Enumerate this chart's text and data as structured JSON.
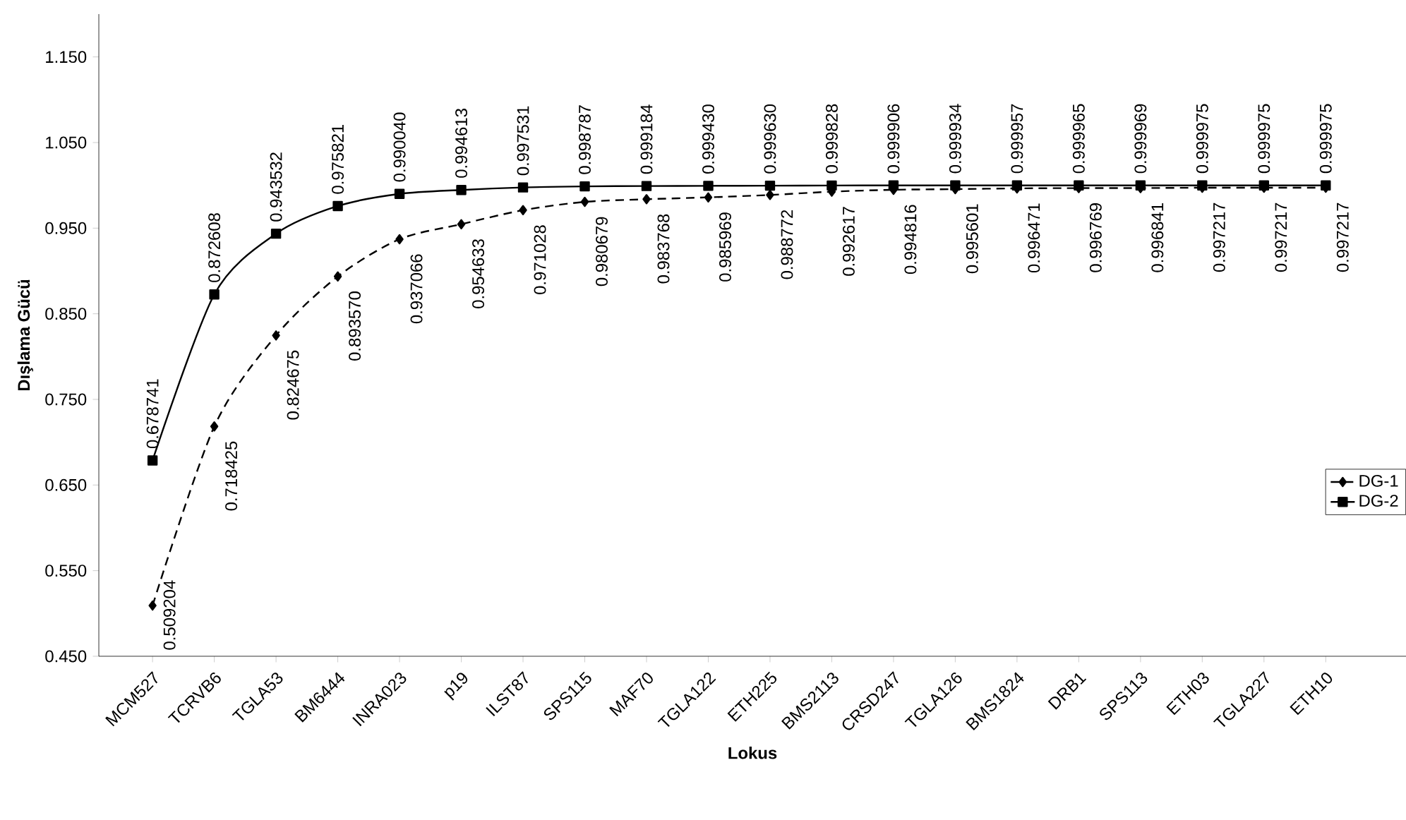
{
  "chart_data": {
    "type": "line",
    "xlabel": "Lokus",
    "ylabel": "Dışlama Gücü",
    "categories": [
      "MCM527",
      "TCRVB6",
      "TGLA53",
      "BM6444",
      "INRA023",
      "p19",
      "ILST87",
      "SPS115",
      "MAF70",
      "TGLA122",
      "ETH225",
      "BMS2113",
      "CRSD247",
      "TGLA126",
      "BMS1824",
      "DRB1",
      "SPS113",
      "ETH03",
      "TGLA227",
      "ETH10"
    ],
    "series": [
      {
        "name": "DG-1",
        "color": "#000000",
        "marker": "diamond",
        "line_style": "dashed",
        "values": [
          0.509204,
          0.718425,
          0.824675,
          0.89357,
          0.937066,
          0.954633,
          0.971028,
          0.980679,
          0.983768,
          0.985969,
          0.988772,
          0.992617,
          0.994816,
          0.995601,
          0.996471,
          0.996769,
          0.996841,
          0.997217,
          0.997217,
          0.997217
        ],
        "value_labels": [
          "0.509204",
          "0.718425",
          "0.824675",
          "0.893570",
          "0.937066",
          "0.954633",
          "0.971028",
          "0.980679",
          "0.983768",
          "0.985969",
          "0.988772",
          "0.992617",
          "0.994816",
          "0.995601",
          "0.996471",
          "0.996769",
          "0.996841",
          "0.997217",
          "0.997217",
          "0.997217"
        ]
      },
      {
        "name": "DG-2",
        "color": "#000000",
        "marker": "square",
        "line_style": "solid",
        "values": [
          0.678741,
          0.872608,
          0.943532,
          0.975821,
          0.99004,
          0.994613,
          0.997531,
          0.998787,
          0.999184,
          0.99943,
          0.99963,
          0.999828,
          0.999906,
          0.999934,
          0.999957,
          0.999965,
          0.999969,
          0.999975,
          0.999975,
          0.999975
        ],
        "value_labels": [
          "0.678741",
          "0.872608",
          "0.943532",
          "0.975821",
          "0.990040",
          "0.994613",
          "0.997531",
          "0.998787",
          "0.999184",
          "0.999430",
          "0.999630",
          "0.999828",
          "0.999906",
          "0.999934",
          "0.999957",
          "0.999965",
          "0.999969",
          "0.999975",
          "0.999975",
          "0.999975"
        ]
      }
    ],
    "ylim": [
      0.45,
      1.2
    ],
    "yticks": [
      {
        "value": 0.45,
        "label": "0.450"
      },
      {
        "value": 0.55,
        "label": "0.550"
      },
      {
        "value": 0.65,
        "label": "0.650"
      },
      {
        "value": 0.75,
        "label": "0.750"
      },
      {
        "value": 0.85,
        "label": "0.850"
      },
      {
        "value": 0.95,
        "label": "0.950"
      },
      {
        "value": 1.05,
        "label": "1.050"
      },
      {
        "value": 1.15,
        "label": "1.150"
      }
    ],
    "grid": false,
    "legend": "right"
  }
}
